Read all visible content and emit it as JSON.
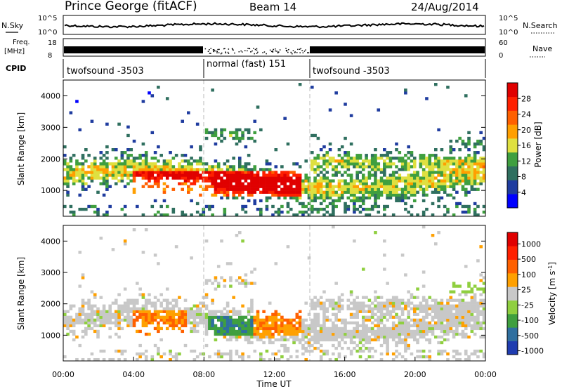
{
  "header": {
    "station": "Prince George (fitACF)",
    "beam": "Beam 14",
    "date": "24/Aug/2014"
  },
  "top_panels": {
    "nsky_label": "N.Sky",
    "nsky_ticks": [
      "10^5",
      "10^0"
    ],
    "nsearch_label": "N.Search",
    "freq_label": "Freq.",
    "freq_unit": "[MHz]",
    "freq_ticks": [
      "18",
      "8"
    ],
    "nave_ticks": [
      "60",
      "0"
    ],
    "nave_label": "Nave",
    "cpid_label": "CPID",
    "cpid_segments": [
      {
        "label": "twofsound -3503",
        "start_hour": 0,
        "end_hour": 8
      },
      {
        "label": "normal (fast) 151",
        "start_hour": 8,
        "end_hour": 14
      },
      {
        "label": "twofsound -3503",
        "start_hour": 14,
        "end_hour": 24
      }
    ]
  },
  "colors": {
    "power_scale": [
      "#0000ff",
      "#1f3c9f",
      "#2f6f5f",
      "#3f9f3f",
      "#dfe040",
      "#ff9f00",
      "#ff6000",
      "#ff2000",
      "#e00000"
    ],
    "velocity_scale": [
      "#1f3cb0",
      "#2f6f9f",
      "#3f9f3f",
      "#8fcf3f",
      "#c8c8c8",
      "#ffa000",
      "#ff6000",
      "#ff2000",
      "#e00000"
    ]
  },
  "chart_data": [
    {
      "type": "heatmap",
      "name": "power",
      "ylabel": "Slant Range [km]",
      "xlabel": "Time UT",
      "x_ticks": [
        "00:00",
        "04:00",
        "08:00",
        "12:00",
        "16:00",
        "20:00",
        "00:00"
      ],
      "y_ticks": [
        "1000",
        "2000",
        "3000",
        "4000"
      ],
      "xlim_hours": [
        0,
        24
      ],
      "ylim_km": [
        180,
        4500
      ],
      "colorbar_label": "Power [dB]",
      "colorbar_ticks": [
        "4",
        "8",
        "12",
        "16",
        "20",
        "24",
        "28"
      ],
      "colorbar_range": [
        0,
        30
      ]
    },
    {
      "type": "heatmap",
      "name": "velocity",
      "ylabel": "Slant Range [km]",
      "xlabel": "Time UT",
      "x_ticks": [
        "00:00",
        "04:00",
        "08:00",
        "12:00",
        "16:00",
        "20:00",
        "00:00"
      ],
      "y_ticks": [
        "1000",
        "2000",
        "3000",
        "4000"
      ],
      "xlim_hours": [
        0,
        24
      ],
      "ylim_km": [
        180,
        4500
      ],
      "colorbar_label": "Velocity [m s^-1]",
      "colorbar_ticks": [
        "1000",
        "500",
        "100",
        "25",
        "-25",
        "-100",
        "-500",
        "-1000"
      ]
    }
  ]
}
